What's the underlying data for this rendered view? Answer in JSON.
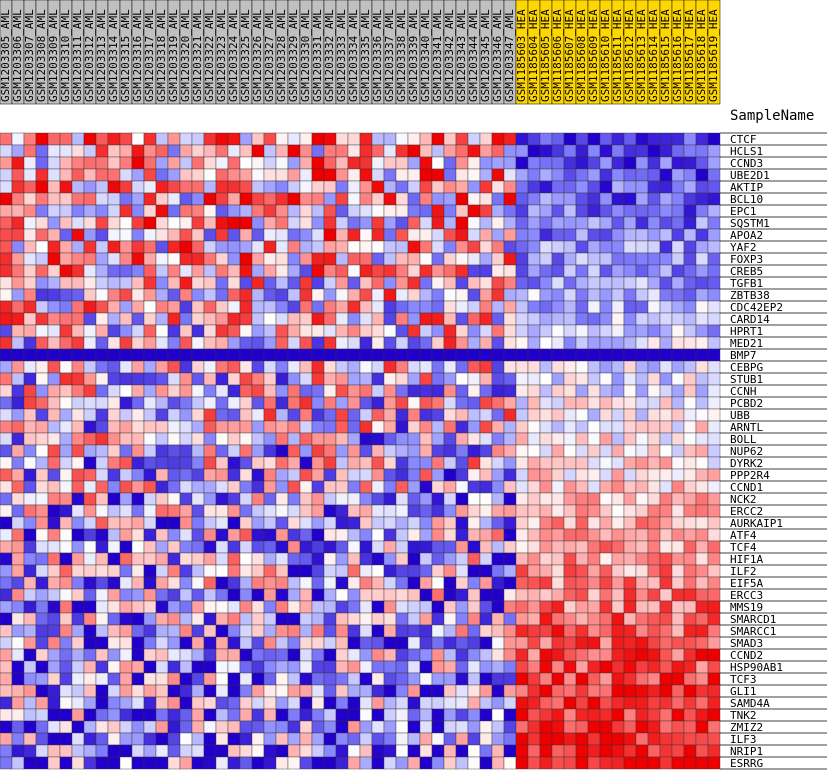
{
  "chart_data": {
    "type": "heatmap",
    "axis_title": "SampleName",
    "columns": [
      {
        "name": "GSM1203305_AML",
        "group": "AML"
      },
      {
        "name": "GSM1203306_AML",
        "group": "AML"
      },
      {
        "name": "GSM1203307_AML",
        "group": "AML"
      },
      {
        "name": "GSM1203308_AML",
        "group": "AML"
      },
      {
        "name": "GSM1203309_AML",
        "group": "AML"
      },
      {
        "name": "GSM1203310_AML",
        "group": "AML"
      },
      {
        "name": "GSM1203311_AML",
        "group": "AML"
      },
      {
        "name": "GSM1203312_AML",
        "group": "AML"
      },
      {
        "name": "GSM1203313_AML",
        "group": "AML"
      },
      {
        "name": "GSM1203314_AML",
        "group": "AML"
      },
      {
        "name": "GSM1203315_AML",
        "group": "AML"
      },
      {
        "name": "GSM1203316_AML",
        "group": "AML"
      },
      {
        "name": "GSM1203317_AML",
        "group": "AML"
      },
      {
        "name": "GSM1203318_AML",
        "group": "AML"
      },
      {
        "name": "GSM1203319_AML",
        "group": "AML"
      },
      {
        "name": "GSM1203320_AML",
        "group": "AML"
      },
      {
        "name": "GSM1203321_AML",
        "group": "AML"
      },
      {
        "name": "GSM1203322_AML",
        "group": "AML"
      },
      {
        "name": "GSM1203323_AML",
        "group": "AML"
      },
      {
        "name": "GSM1203324_AML",
        "group": "AML"
      },
      {
        "name": "GSM1203325_AML",
        "group": "AML"
      },
      {
        "name": "GSM1203326_AML",
        "group": "AML"
      },
      {
        "name": "GSM1203327_AML",
        "group": "AML"
      },
      {
        "name": "GSM1203328_AML",
        "group": "AML"
      },
      {
        "name": "GSM1203329_AML",
        "group": "AML"
      },
      {
        "name": "GSM1203330_AML",
        "group": "AML"
      },
      {
        "name": "GSM1203331_AML",
        "group": "AML"
      },
      {
        "name": "GSM1203332_AML",
        "group": "AML"
      },
      {
        "name": "GSM1203333_AML",
        "group": "AML"
      },
      {
        "name": "GSM1203334_AML",
        "group": "AML"
      },
      {
        "name": "GSM1203335_AML",
        "group": "AML"
      },
      {
        "name": "GSM1203336_AML",
        "group": "AML"
      },
      {
        "name": "GSM1203337_AML",
        "group": "AML"
      },
      {
        "name": "GSM1203338_AML",
        "group": "AML"
      },
      {
        "name": "GSM1203339_AML",
        "group": "AML"
      },
      {
        "name": "GSM1203340_AML",
        "group": "AML"
      },
      {
        "name": "GSM1203341_AML",
        "group": "AML"
      },
      {
        "name": "GSM1203342_AML",
        "group": "AML"
      },
      {
        "name": "GSM1203343_AML",
        "group": "AML"
      },
      {
        "name": "GSM1203344_AML",
        "group": "AML"
      },
      {
        "name": "GSM1203345_AML",
        "group": "AML"
      },
      {
        "name": "GSM1203346_AML",
        "group": "AML"
      },
      {
        "name": "GSM1203347_AML",
        "group": "AML"
      },
      {
        "name": "GSM1185603_HEA",
        "group": "HEA"
      },
      {
        "name": "GSM1185604_HEA",
        "group": "HEA"
      },
      {
        "name": "GSM1185605_HEA",
        "group": "HEA"
      },
      {
        "name": "GSM1185606_HEA",
        "group": "HEA"
      },
      {
        "name": "GSM1185607_HEA",
        "group": "HEA"
      },
      {
        "name": "GSM1185608_HEA",
        "group": "HEA"
      },
      {
        "name": "GSM1185609_HEA",
        "group": "HEA"
      },
      {
        "name": "GSM1185610_HEA",
        "group": "HEA"
      },
      {
        "name": "GSM1185611_HEA",
        "group": "HEA"
      },
      {
        "name": "GSM1185612_HEA",
        "group": "HEA"
      },
      {
        "name": "GSM1185613_HEA",
        "group": "HEA"
      },
      {
        "name": "GSM1185614_HEA",
        "group": "HEA"
      },
      {
        "name": "GSM1185615_HEA",
        "group": "HEA"
      },
      {
        "name": "GSM1185616_HEA",
        "group": "HEA"
      },
      {
        "name": "GSM1185617_HEA",
        "group": "HEA"
      },
      {
        "name": "GSM1185618_HEA",
        "group": "HEA"
      },
      {
        "name": "GSM1185619_HEA",
        "group": "HEA"
      }
    ],
    "rows": [
      "CTCF",
      "HCLS1",
      "CCND3",
      "UBE2D1",
      "AKTIP",
      "BCL10",
      "EPC1",
      "SQSTM1",
      "APOA2",
      "YAF2",
      "FOXP3",
      "CREB5",
      "TGFB1",
      "ZBTB38",
      "CDC42EP2",
      "CARD14",
      "HPRT1",
      "MED21",
      "BMP7",
      "CEBPG",
      "STUB1",
      "CCNH",
      "PCBD2",
      "UBB",
      "ARNTL",
      "BOLL",
      "NUP62",
      "DYRK2",
      "PPP2R4",
      "CCND1",
      "NCK2",
      "ERCC2",
      "AURKAIP1",
      "ATF4",
      "TCF4",
      "HIF1A",
      "ILF2",
      "EIF5A",
      "ERCC3",
      "MMS19",
      "SMARCD1",
      "SMARCC1",
      "SMAD3",
      "CCND2",
      "HSP90AB1",
      "TCF3",
      "GLI1",
      "SAMD4A",
      "TNK2",
      "ZMIZ2",
      "ILF3",
      "NRIP1",
      "ESRRG"
    ],
    "group_colors": {
      "AML": "#c0c0c0",
      "HEA": "#ffd700"
    },
    "color_scale": {
      "low": "#2200cc",
      "mid_low": "#8888ff",
      "mid": "#ffffff",
      "mid_high": "#ff8888",
      "high": "#ee0000"
    },
    "value_range": [
      -2,
      2
    ]
  }
}
